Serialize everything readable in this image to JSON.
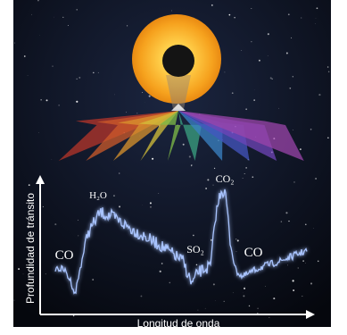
{
  "diagram": {
    "axes": {
      "y_label": "Profundidad de tránsito",
      "x_label": "Longitud de onda"
    },
    "labels": [
      "CO",
      "H₂O",
      "SO₂",
      "CO₂",
      "CO"
    ]
  }
}
